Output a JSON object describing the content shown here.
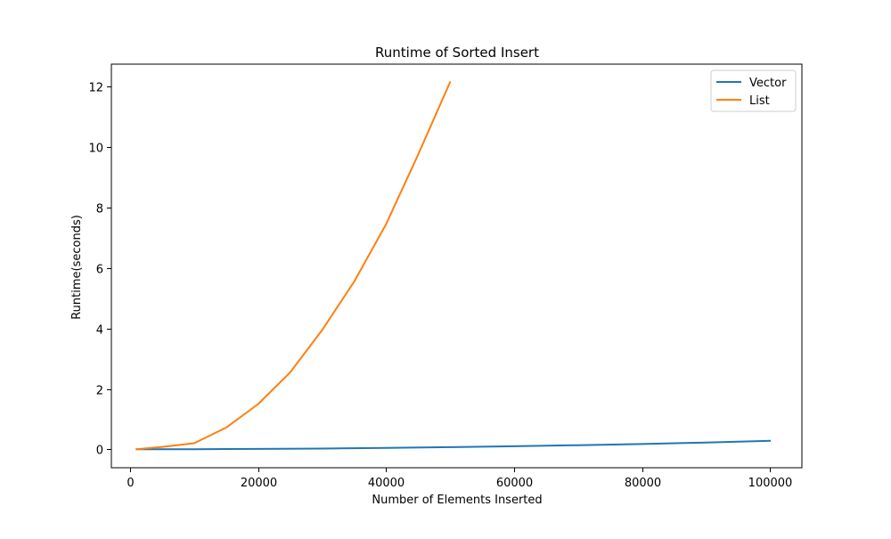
{
  "chart_data": {
    "type": "line",
    "title": "Runtime of Sorted Insert",
    "xlabel": "Number of Elements Inserted",
    "ylabel": "Runtime(seconds)",
    "xlim": [
      -2950,
      105000
    ],
    "ylim": [
      -0.61,
      12.75
    ],
    "xticks": [
      0,
      20000,
      40000,
      60000,
      80000,
      100000
    ],
    "yticks": [
      0,
      2,
      4,
      6,
      8,
      10,
      12
    ],
    "grid": false,
    "legend_position": "top-right",
    "series": [
      {
        "name": "Vector",
        "color": "#1f77b4",
        "x": [
          1000,
          10000,
          20000,
          30000,
          40000,
          50000,
          60000,
          70000,
          80000,
          90000,
          100000
        ],
        "y": [
          0.0,
          0.003,
          0.011,
          0.025,
          0.045,
          0.07,
          0.1,
          0.135,
          0.175,
          0.225,
          0.28
        ]
      },
      {
        "name": "List",
        "color": "#ff7f0e",
        "x": [
          1000,
          5000,
          10000,
          15000,
          20000,
          25000,
          30000,
          35000,
          40000,
          45000,
          50000
        ],
        "y": [
          0.0,
          0.08,
          0.2,
          0.72,
          1.5,
          2.55,
          3.95,
          5.55,
          7.45,
          9.75,
          12.15
        ]
      }
    ]
  }
}
